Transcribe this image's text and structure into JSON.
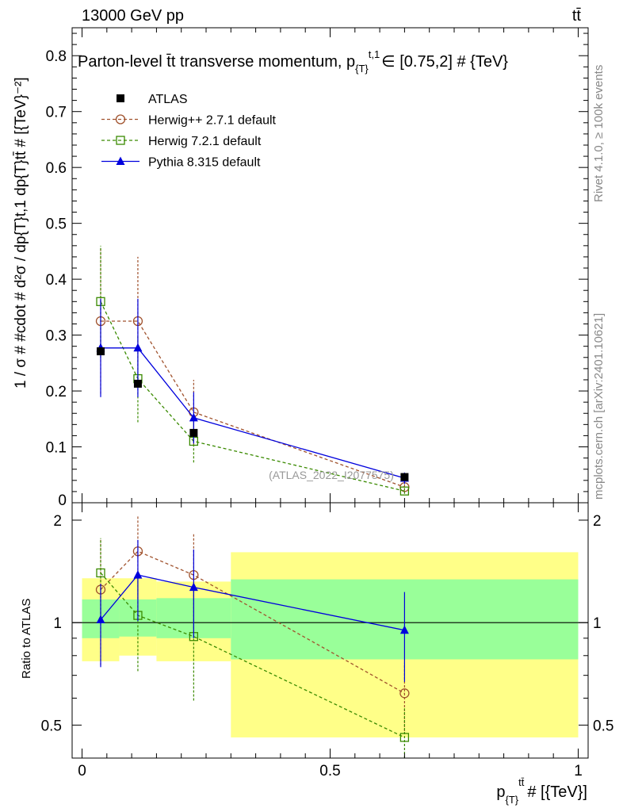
{
  "header": {
    "energy_label": "13000 GeV pp",
    "process_label": "tt̄",
    "side_rivet": "Rivet 4.1.0, ≥ 100k events",
    "side_mcplots": "mcplots.cern.ch [arXiv:2401.10621]"
  },
  "chart_data": {
    "type": "scatter",
    "title": "Parton-level t̄t transverse momentum, p_{T}^{t,1} ∈ [0.75,2] # {TeV}",
    "title_parts": {
      "main": "Parton-level t̄t transverse momentum, p",
      "sub": "{T}",
      "sup": "t,1",
      "tail": "∈ [0.75,2] # {TeV}"
    },
    "watermark": "(ATLAS_2022_I2077575)",
    "xlabel": "p_{T}^{tt̄} # [{TeV}]",
    "xlabel_parts": {
      "main": "p",
      "sub": "{T}",
      "sup": "tt̄",
      "tail": "# [{TeV}]"
    },
    "ylabel": "1 / σ # #cdot # d²σ / dp_{T}^{t,1} dp_{T}^{tt̄} # [{TeV}⁻²]",
    "ylabel_text": "1 / σ # #cdot # d²σ / dp{T}t,1 dp{T}tt̄ # [{TeV}⁻²]",
    "ratio_ylabel": "Ratio to ATLAS",
    "xlim": [
      -0.02,
      1.02
    ],
    "ylim": [
      0,
      0.85
    ],
    "ratio_ylim": [
      0.4,
      2.25
    ],
    "x_ticks": [
      0,
      0.5,
      1
    ],
    "x_tick_labels": [
      "0",
      "0.5",
      "1"
    ],
    "y_ticks": [
      0.1,
      0.2,
      0.3,
      0.4,
      0.5,
      0.6,
      0.7,
      0.8
    ],
    "y_tick_labels": [
      "0.1",
      "0.2",
      "0.3",
      "0.4",
      "0.5",
      "0.6",
      "0.7",
      "0.8"
    ],
    "y_zero_label": "0",
    "ratio_y_ticks": [
      0.5,
      1,
      2
    ],
    "ratio_y_tick_labels": [
      "0.5",
      "1",
      "2"
    ],
    "bins": [
      [
        0,
        0.075
      ],
      [
        0.075,
        0.15
      ],
      [
        0.15,
        0.3
      ],
      [
        0.3,
        1.0
      ]
    ],
    "data": {
      "name": "ATLAS",
      "x": [
        0.0375,
        0.1125,
        0.225,
        0.65
      ],
      "y": [
        0.271,
        0.213,
        0.125,
        0.046
      ],
      "band_stat": [
        [
          0.9,
          1.17
        ],
        [
          0.91,
          1.17
        ],
        [
          0.9,
          1.18
        ],
        [
          0.78,
          1.34
        ]
      ],
      "band_total": [
        [
          0.77,
          1.35
        ],
        [
          0.8,
          1.35
        ],
        [
          0.77,
          1.32
        ],
        [
          0.46,
          1.61
        ]
      ]
    },
    "series": [
      {
        "name": "Herwig++ 2.7.1 default",
        "color": "#a0522d",
        "marker": "circle",
        "dashed": true,
        "x": [
          0.0375,
          0.1125,
          0.225,
          0.65
        ],
        "y": [
          0.325,
          0.325,
          0.162,
          0.028
        ],
        "yerr": [
          0.13,
          0.115,
          0.058,
          0.006
        ],
        "ratio": [
          1.25,
          1.62,
          1.38,
          0.62
        ],
        "ratio_err": [
          0.5,
          0.44,
          0.44,
          0.14
        ]
      },
      {
        "name": "Herwig 7.2.1 default",
        "color": "#3a8a00",
        "marker": "square",
        "dashed": true,
        "x": [
          0.0375,
          0.1125,
          0.225,
          0.65
        ],
        "y": [
          0.36,
          0.222,
          0.11,
          0.021
        ],
        "yerr": [
          0.1,
          0.078,
          0.038,
          0.005
        ],
        "ratio": [
          1.4,
          1.05,
          0.91,
          0.46
        ],
        "ratio_err": [
          0.37,
          0.33,
          0.32,
          0.1
        ]
      },
      {
        "name": "Pythia 8.315 default",
        "color": "#0000dd",
        "marker": "triangle",
        "dashed": false,
        "x": [
          0.0375,
          0.1125,
          0.225,
          0.65
        ],
        "y": [
          0.277,
          0.277,
          0.152,
          0.044
        ],
        "yerr": [
          0.088,
          0.088,
          0.046,
          0.01
        ],
        "ratio": [
          1.02,
          1.38,
          1.27,
          0.95
        ],
        "ratio_err": [
          0.28,
          0.37,
          0.37,
          0.28
        ]
      }
    ],
    "series_x_offsets": [
      0,
      0,
      0
    ]
  }
}
